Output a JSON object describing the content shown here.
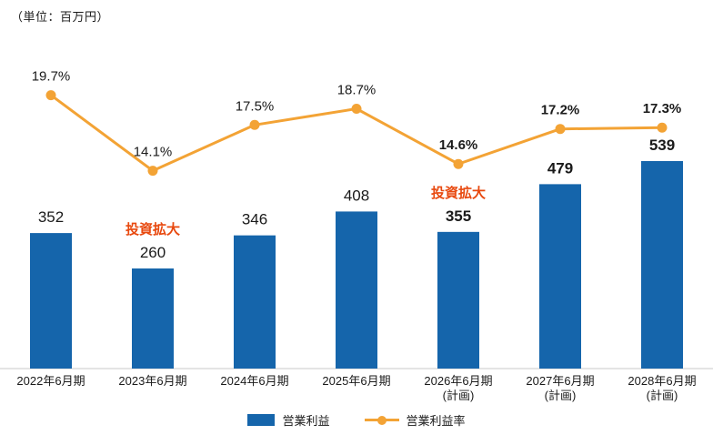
{
  "unit_label": "（単位：百万円）",
  "chart_data": {
    "type": "bar",
    "subtype": "bar-line-combo",
    "title": "",
    "categories": [
      {
        "label": "2022年6月期",
        "sub": ""
      },
      {
        "label": "2023年6月期",
        "sub": ""
      },
      {
        "label": "2024年6月期",
        "sub": ""
      },
      {
        "label": "2025年6月期",
        "sub": ""
      },
      {
        "label": "2026年6月期",
        "sub": "(計画)"
      },
      {
        "label": "2027年6月期",
        "sub": "(計画)"
      },
      {
        "label": "2028年6月期",
        "sub": "(計画)"
      }
    ],
    "series": {
      "bar": {
        "name": "営業利益",
        "values": [
          352,
          260,
          346,
          408,
          355,
          479,
          539
        ]
      },
      "line": {
        "name": "営業利益率",
        "values": [
          19.7,
          14.1,
          17.5,
          18.7,
          14.6,
          17.2,
          17.3
        ]
      }
    },
    "annotations": [
      {
        "index": 1,
        "label": "投資拡大"
      },
      {
        "index": 4,
        "label": "投資拡大"
      }
    ],
    "plan_indices": [
      4,
      5,
      6
    ],
    "legend": [
      "営業利益",
      "営業利益率"
    ],
    "colors": {
      "bar": "#1565ab",
      "line": "#f3a335",
      "annotation": "#e8490f",
      "text": "#1a1a1a",
      "axis": "#c9c9c9"
    }
  }
}
